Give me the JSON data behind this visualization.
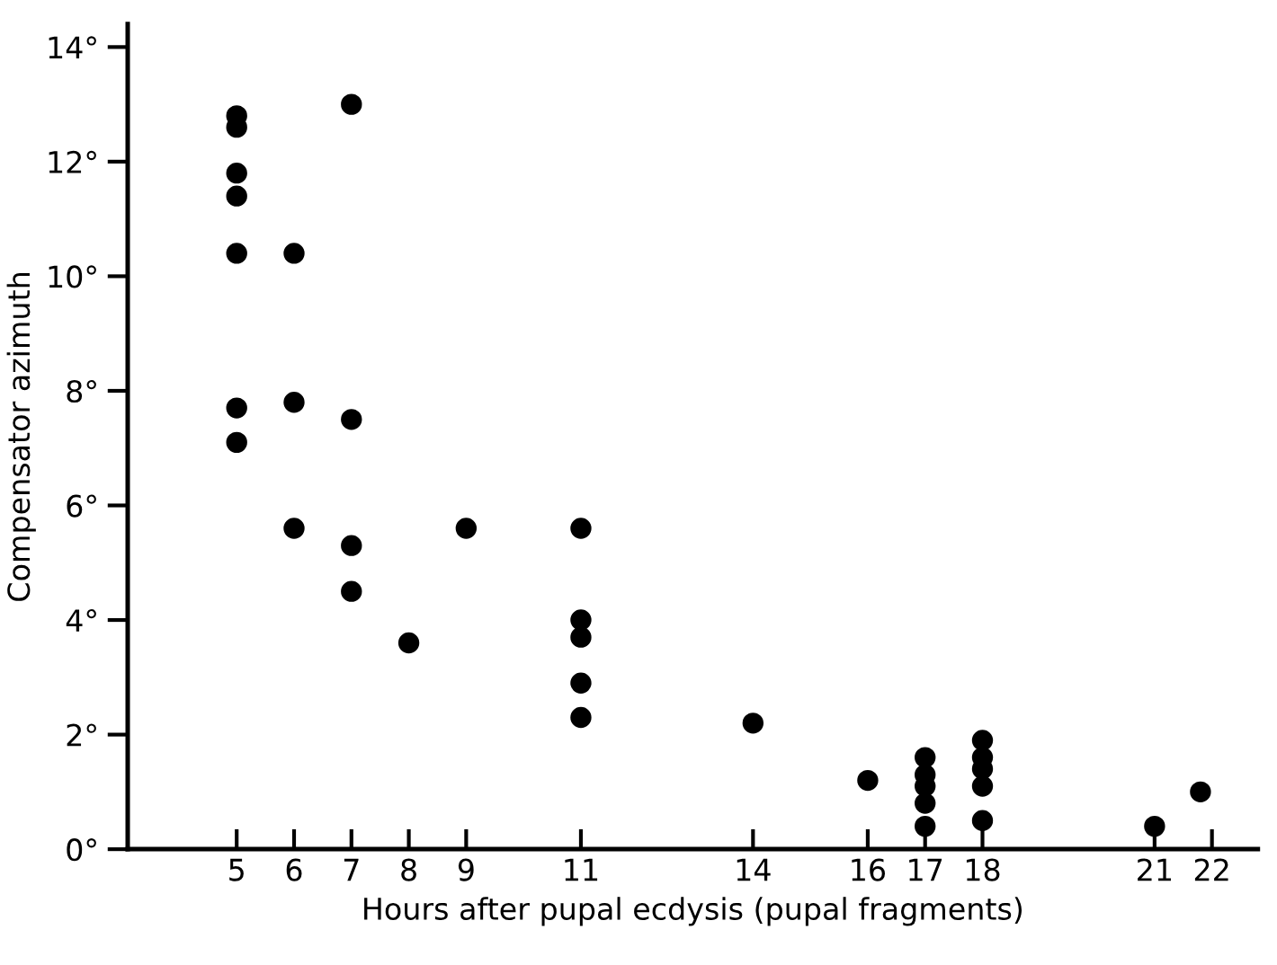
{
  "chart_data": {
    "type": "scatter",
    "xlabel": "Hours after pupal ecdysis (pupal fragments)",
    "ylabel": "Compensator azimuth",
    "series": [
      {
        "color": "#000000",
        "x": [
          5,
          5,
          5,
          5,
          5,
          5,
          5,
          6,
          6,
          6,
          7,
          7,
          7,
          7,
          8,
          9,
          11,
          11,
          11,
          11,
          11,
          14,
          16,
          17,
          17,
          17,
          17,
          17,
          18,
          18,
          18,
          18,
          18,
          21,
          21.8
        ],
        "values": [
          12.8,
          12.6,
          11.8,
          11.4,
          10.4,
          7.7,
          7.1,
          10.4,
          7.8,
          5.6,
          13.0,
          7.5,
          5.3,
          4.5,
          3.6,
          5.6,
          5.6,
          4.0,
          3.7,
          2.9,
          2.3,
          2.2,
          1.2,
          1.6,
          1.3,
          1.1,
          0.8,
          0.4,
          1.9,
          1.6,
          1.4,
          1.1,
          0.5,
          0.4,
          1.0
        ]
      }
    ],
    "marker": "circle",
    "grid": false,
    "xlim": [
      3.1,
      22.8
    ],
    "ylim": [
      0,
      14.4
    ],
    "xticks": [
      5,
      6,
      7,
      8,
      9,
      11,
      14,
      16,
      17,
      18,
      21,
      22
    ],
    "yticks": [
      {
        "value": 0,
        "label": "0°"
      },
      {
        "value": 2,
        "label": "2°"
      },
      {
        "value": 4,
        "label": "4°"
      },
      {
        "value": 6,
        "label": "6°"
      },
      {
        "value": 8,
        "label": "8°"
      },
      {
        "value": 10,
        "label": "10°"
      },
      {
        "value": 12,
        "label": "12°"
      },
      {
        "value": 14,
        "label": "14°"
      }
    ]
  }
}
